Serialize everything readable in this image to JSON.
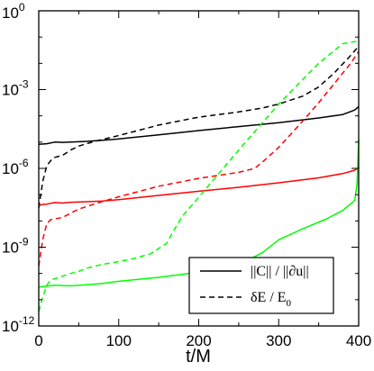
{
  "chart_data": {
    "type": "line",
    "title": "",
    "xlabel": "t/M",
    "ylabel": "",
    "xlim": [
      0,
      400
    ],
    "ylim_log10": [
      -12,
      0
    ],
    "y_scale": "log",
    "grid": false,
    "legend_position": "bottom-right",
    "x_ticks": [
      0,
      100,
      200,
      300,
      400
    ],
    "y_ticks": [
      {
        "base": "10",
        "exp": "-12",
        "value_log10": -12
      },
      {
        "base": "10",
        "exp": "-9",
        "value_log10": -9
      },
      {
        "base": "10",
        "exp": "-6",
        "value_log10": -6
      },
      {
        "base": "10",
        "exp": "-3",
        "value_log10": -3
      },
      {
        "base": "10",
        "exp": "0",
        "value_log10": 0
      }
    ],
    "legend": [
      {
        "label": "||C|| / ||∂u||",
        "style": "solid",
        "color": "#000000"
      },
      {
        "label": "δE / E",
        "sub": "0",
        "style": "dashed",
        "color": "#000000"
      }
    ],
    "series": [
      {
        "color": "#000000",
        "style": "solid",
        "x": [
          0,
          10,
          20,
          30,
          40,
          60,
          80,
          100,
          150,
          200,
          250,
          300,
          350,
          380,
          395,
          398,
          400
        ],
        "log10_y": [
          -5.08,
          -5.06,
          -5.0,
          -5.01,
          -5.0,
          -4.97,
          -4.93,
          -4.88,
          -4.72,
          -4.56,
          -4.41,
          -4.26,
          -4.08,
          -3.95,
          -3.78,
          -3.7,
          -3.65
        ]
      },
      {
        "color": "#000000",
        "style": "dashed",
        "x": [
          0,
          5,
          10,
          15,
          20,
          30,
          40,
          50,
          70,
          100,
          150,
          200,
          250,
          280,
          300,
          330,
          350,
          370,
          390,
          400
        ],
        "log10_y": [
          -7.5,
          -6.5,
          -5.9,
          -5.7,
          -5.58,
          -5.5,
          -5.3,
          -5.15,
          -4.97,
          -4.75,
          -4.35,
          -4.05,
          -3.85,
          -3.7,
          -3.55,
          -3.25,
          -2.9,
          -2.35,
          -1.7,
          -1.35
        ]
      },
      {
        "color": "#ff0000",
        "style": "solid",
        "x": [
          0,
          5,
          10,
          20,
          30,
          40,
          60,
          80,
          100,
          150,
          200,
          250,
          300,
          350,
          380,
          395,
          398,
          400
        ],
        "log10_y": [
          -7.42,
          -7.37,
          -7.36,
          -7.3,
          -7.32,
          -7.29,
          -7.27,
          -7.24,
          -7.19,
          -7.03,
          -6.87,
          -6.72,
          -6.55,
          -6.36,
          -6.2,
          -6.07,
          -6.02,
          -5.97
        ]
      },
      {
        "color": "#ff0000",
        "style": "dashed",
        "x": [
          0,
          5,
          10,
          15,
          20,
          30,
          40,
          50,
          70,
          100,
          150,
          200,
          250,
          270,
          280,
          300,
          330,
          350,
          370,
          390,
          400
        ],
        "log10_y": [
          -9.72,
          -8.72,
          -8.1,
          -7.95,
          -7.92,
          -7.87,
          -7.7,
          -7.55,
          -7.35,
          -7.08,
          -6.68,
          -6.38,
          -6.15,
          -6.0,
          -5.75,
          -5.2,
          -4.2,
          -3.5,
          -2.75,
          -2.0,
          -1.55
        ]
      },
      {
        "color": "#00ff00",
        "style": "solid",
        "x": [
          0,
          10,
          20,
          40,
          60,
          80,
          100,
          150,
          200,
          240,
          260,
          280,
          300,
          330,
          360,
          380,
          395,
          398,
          400
        ],
        "log10_y": [
          -10.52,
          -10.48,
          -10.45,
          -10.47,
          -10.43,
          -10.38,
          -10.3,
          -10.15,
          -9.95,
          -9.74,
          -9.52,
          -9.2,
          -8.72,
          -8.3,
          -7.92,
          -7.6,
          -7.22,
          -6.6,
          -4.9
        ]
      },
      {
        "color": "#00ff00",
        "style": "dashed",
        "x": [
          0,
          5,
          10,
          15,
          20,
          30,
          40,
          50,
          60,
          80,
          100,
          120,
          140,
          160,
          170,
          180,
          200,
          250,
          300,
          350,
          380,
          400
        ],
        "log10_y": [
          -11.45,
          -10.9,
          -10.45,
          -10.25,
          -10.2,
          -10.1,
          -10.0,
          -9.92,
          -9.8,
          -9.65,
          -9.55,
          -9.42,
          -9.25,
          -8.85,
          -8.3,
          -7.8,
          -7.1,
          -5.3,
          -3.55,
          -2.0,
          -1.25,
          -1.15
        ]
      }
    ]
  }
}
